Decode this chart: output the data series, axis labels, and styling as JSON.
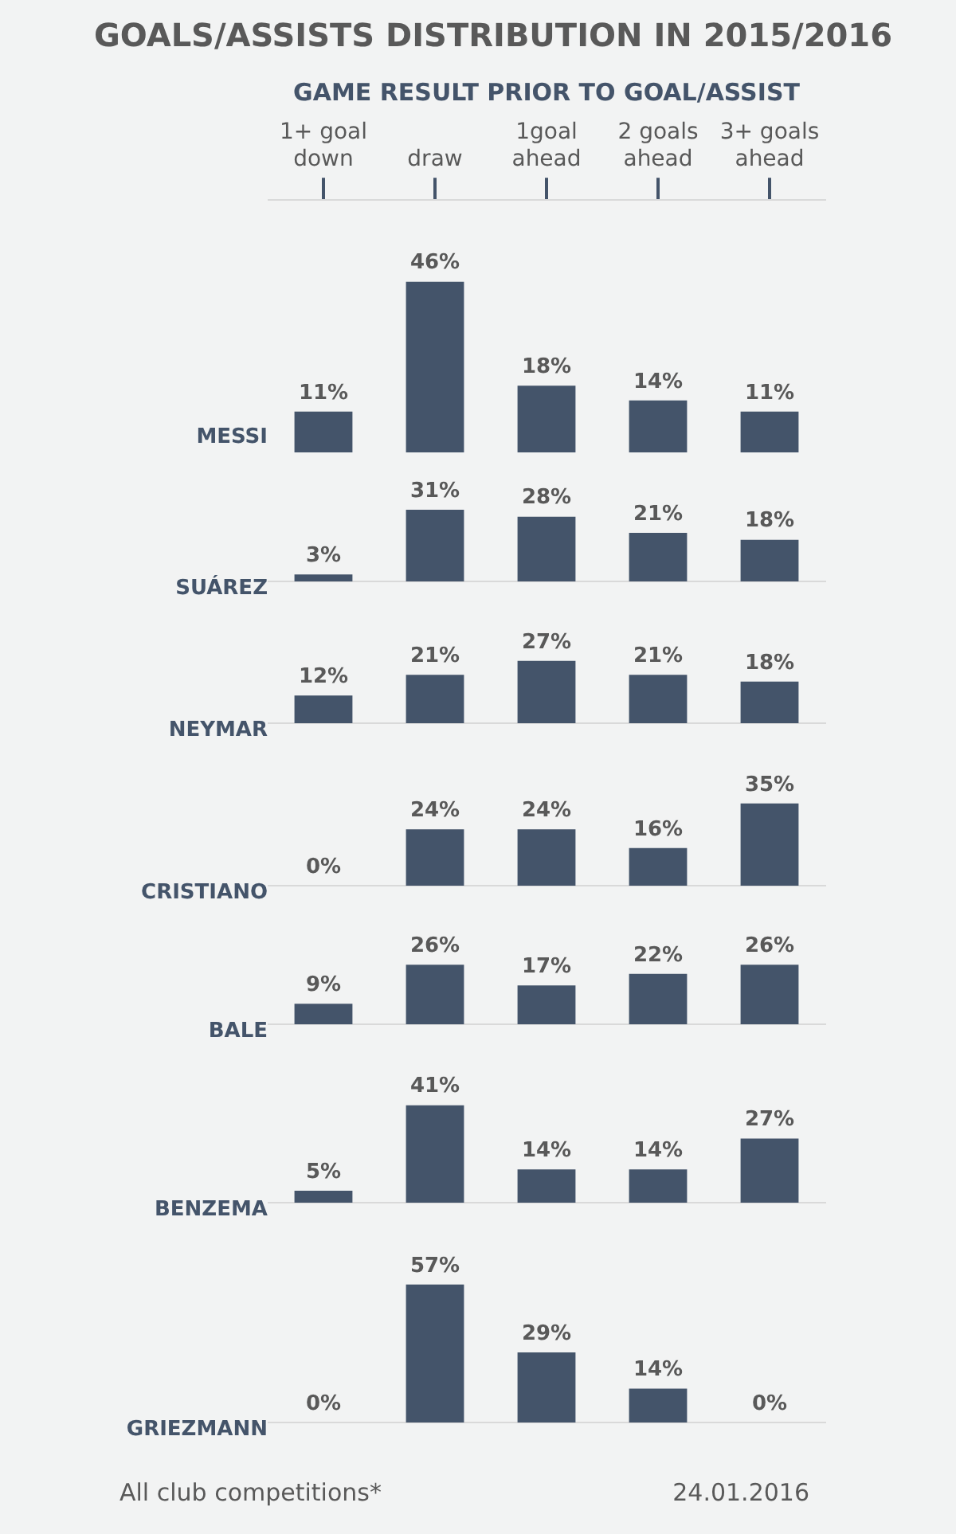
{
  "chart_data": [
    {
      "type": "bar",
      "title": "GOALS/ASSISTS DISTRIBUTION IN 2015/2016",
      "xlabel": "GAME RESULT PRIOR TO GOAL/ASSIST",
      "ylabel": "MESSI",
      "categories": [
        "1+ goal\ndown",
        "draw",
        "1goal\nahead",
        "2 goals\nahead",
        "3+ goals\nahead"
      ],
      "values": [
        11,
        46,
        18,
        14,
        11
      ],
      "value_labels": [
        "11%",
        "46%",
        "18%",
        "14%",
        "11%"
      ],
      "color": "#44546a",
      "tick_labels": "x",
      "legend": false
    },
    {
      "type": "bar",
      "ylabel": "SUÁREZ",
      "categories": [
        null,
        null,
        null,
        null,
        null
      ],
      "values": [
        3,
        31,
        28,
        21,
        18
      ],
      "value_labels": [
        "3%",
        "31%",
        "28%",
        "21%",
        "18%"
      ],
      "color": "#44546a",
      "tick_labels": false,
      "legend": false
    },
    {
      "type": "bar",
      "ylabel": "NEYMAR",
      "categories": [
        null,
        null,
        null,
        null,
        null
      ],
      "values": [
        12,
        21,
        27,
        21,
        18
      ],
      "value_labels": [
        "12%",
        "21%",
        "27%",
        "21%",
        "18%"
      ],
      "color": "#44546a",
      "tick_labels": false,
      "legend": false
    },
    {
      "type": "bar",
      "ylabel": "CRISTIANO",
      "categories": [
        null,
        null,
        null,
        null,
        null
      ],
      "values": [
        0,
        24,
        24,
        16,
        35
      ],
      "value_labels": [
        "0%",
        "24%",
        "24%",
        "16%",
        "35%"
      ],
      "color": "#44546a",
      "tick_labels": false,
      "legend": false
    },
    {
      "type": "bar",
      "ylabel": "BALE",
      "categories": [
        null,
        null,
        null,
        null,
        null
      ],
      "values": [
        9,
        26,
        17,
        22,
        26
      ],
      "value_labels": [
        "9%",
        "26%",
        "17%",
        "22%",
        "26%"
      ],
      "color": "#44546a",
      "tick_labels": false,
      "legend": false
    },
    {
      "type": "bar",
      "ylabel": "BENZEMA",
      "categories": [
        null,
        null,
        null,
        null,
        null
      ],
      "values": [
        5,
        41,
        14,
        14,
        27
      ],
      "value_labels": [
        "5%",
        "41%",
        "14%",
        "14%",
        "27%"
      ],
      "color": "#44546a",
      "tick_labels": false,
      "legend": false
    },
    {
      "type": "bar",
      "ylabel": "GRIEZMANN",
      "categories": [
        null,
        null,
        null,
        null,
        null
      ],
      "values": [
        0,
        57,
        29,
        14,
        0
      ],
      "value_labels": [
        "0%",
        "57%",
        "29%",
        "14%",
        "0%"
      ],
      "color": "#44546a",
      "tick_labels": false,
      "legend": false,
      "annotations": [
        "All club competitions*",
        "24.01.2016"
      ]
    }
  ]
}
